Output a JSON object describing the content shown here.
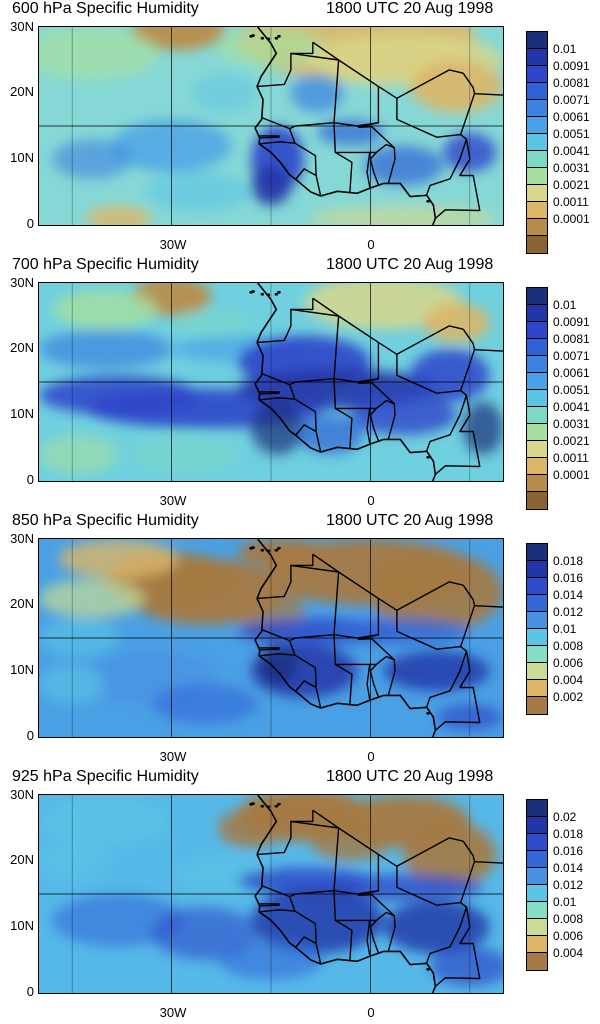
{
  "axes": {
    "y_ticks": [
      "30N",
      "20N",
      "10N",
      "0"
    ],
    "x_ticks": [
      "30W",
      "0"
    ]
  },
  "panels": [
    {
      "title_left": "600 hPa Specific Humidity",
      "title_right": "1800 UTC 20 Aug 1998",
      "colorbar_labels": [
        "0.01",
        "0.0091",
        "0.0081",
        "0.0071",
        "0.0061",
        "0.0051",
        "0.0041",
        "0.0031",
        "0.0021",
        "0.0011",
        "0.0001"
      ],
      "colorbar_colors": [
        "#1c2f7a",
        "#2336a8",
        "#2f46c9",
        "#2f62d6",
        "#3c82e0",
        "#4aa2e6",
        "#5cc4e4",
        "#7dd8c8",
        "#a6e0a0",
        "#d9d78a",
        "#dcb768",
        "#b88d4c",
        "#8b6234"
      ],
      "map_base": "#86d8d6"
    },
    {
      "title_left": "700 hPa Specific Humidity",
      "title_right": "1800 UTC 20 Aug 1998",
      "colorbar_labels": [
        "0.01",
        "0.0091",
        "0.0081",
        "0.0071",
        "0.0061",
        "0.0051",
        "0.0041",
        "0.0031",
        "0.0021",
        "0.0011",
        "0.0001"
      ],
      "colorbar_colors": [
        "#1c2f7a",
        "#2336a8",
        "#2f46c9",
        "#2f62d6",
        "#3c82e0",
        "#4aa2e6",
        "#5cc4e4",
        "#7dd8c8",
        "#a6e0a0",
        "#d9d78a",
        "#dcb768",
        "#b88d4c",
        "#8b6234"
      ],
      "map_base": "#6fd0df"
    },
    {
      "title_left": "850 hPa Specific Humidity",
      "title_right": "1800 UTC 20 Aug 1998",
      "colorbar_labels": [
        "0.018",
        "0.016",
        "0.014",
        "0.012",
        "0.01",
        "0.008",
        "0.006",
        "0.004",
        "0.002"
      ],
      "colorbar_colors": [
        "#1c2f7a",
        "#2336a8",
        "#2f4cc9",
        "#3468d8",
        "#4a90e2",
        "#5cc4e4",
        "#86dcc4",
        "#c8dc96",
        "#dcb768",
        "#a57a44"
      ],
      "map_base": "#4aa0e4"
    },
    {
      "title_left": "925 hPa Specific Humidity",
      "title_right": "1800 UTC 20 Aug 1998",
      "colorbar_labels": [
        "0.02",
        "0.018",
        "0.016",
        "0.014",
        "0.012",
        "0.01",
        "0.008",
        "0.006",
        "0.004"
      ],
      "colorbar_colors": [
        "#1c2f7a",
        "#2336a8",
        "#2f4cc9",
        "#3468d8",
        "#4a90e2",
        "#5cc4e4",
        "#86dcc4",
        "#c8dc96",
        "#dcb768",
        "#a57a44"
      ],
      "map_base": "#56b8e8"
    }
  ]
}
